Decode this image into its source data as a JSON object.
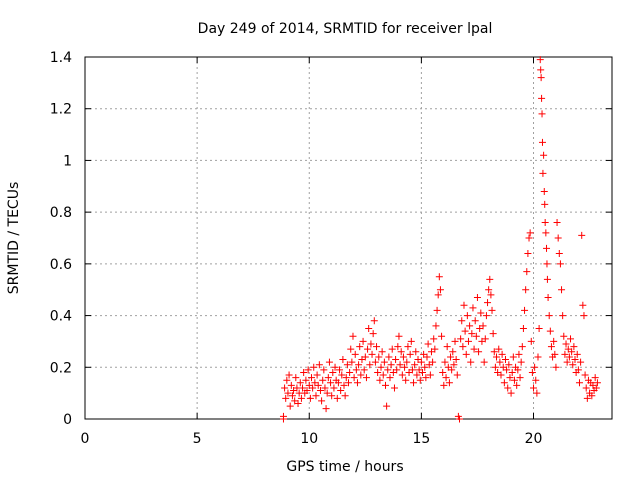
{
  "chart_data": {
    "type": "scatter",
    "title": "Day 249 of 2014, SRMTID for receiver lpal",
    "xlabel": "GPS time / hours",
    "ylabel": "SRMTID / TECUs",
    "xlim": [
      0,
      23.5
    ],
    "ylim": [
      0,
      1.4
    ],
    "x_ticks": [
      0,
      5,
      10,
      15,
      20
    ],
    "x_tick_labels": [
      "0",
      "5",
      "10",
      "15",
      "20"
    ],
    "y_ticks": [
      0,
      0.2,
      0.4,
      0.6,
      0.8,
      1.0,
      1.2,
      1.4
    ],
    "y_tick_labels": [
      "0",
      "0.2",
      "0.4",
      "0.6",
      "0.8",
      "1",
      "1.2",
      "1.4"
    ],
    "grid": true,
    "marker": "plus",
    "color": "#ff0000",
    "series": [
      {
        "name": "SRMTID",
        "points": [
          [
            8.85,
            0.0
          ],
          [
            8.85,
            0.01
          ],
          [
            8.9,
            0.12
          ],
          [
            8.95,
            0.08
          ],
          [
            9.0,
            0.15
          ],
          [
            9.05,
            0.1
          ],
          [
            9.1,
            0.17
          ],
          [
            9.15,
            0.05
          ],
          [
            9.2,
            0.13
          ],
          [
            9.25,
            0.09
          ],
          [
            9.3,
            0.11
          ],
          [
            9.35,
            0.07
          ],
          [
            9.4,
            0.16
          ],
          [
            9.45,
            0.12
          ],
          [
            9.5,
            0.06
          ],
          [
            9.55,
            0.1
          ],
          [
            9.6,
            0.14
          ],
          [
            9.65,
            0.08
          ],
          [
            9.7,
            0.12
          ],
          [
            9.75,
            0.18
          ],
          [
            9.8,
            0.1
          ],
          [
            9.85,
            0.15
          ],
          [
            9.9,
            0.11
          ],
          [
            9.95,
            0.19
          ],
          [
            10.0,
            0.13
          ],
          [
            10.05,
            0.08
          ],
          [
            10.1,
            0.16
          ],
          [
            10.15,
            0.12
          ],
          [
            10.2,
            0.2
          ],
          [
            10.25,
            0.14
          ],
          [
            10.3,
            0.09
          ],
          [
            10.35,
            0.17
          ],
          [
            10.4,
            0.13
          ],
          [
            10.45,
            0.21
          ],
          [
            10.5,
            0.11
          ],
          [
            10.55,
            0.07
          ],
          [
            10.6,
            0.15
          ],
          [
            10.65,
            0.19
          ],
          [
            10.7,
            0.12
          ],
          [
            10.75,
            0.04
          ],
          [
            10.8,
            0.1
          ],
          [
            10.85,
            0.16
          ],
          [
            10.9,
            0.22
          ],
          [
            10.95,
            0.14
          ],
          [
            11.0,
            0.09
          ],
          [
            11.05,
            0.18
          ],
          [
            11.1,
            0.12
          ],
          [
            11.15,
            0.2
          ],
          [
            11.2,
            0.15
          ],
          [
            11.25,
            0.08
          ],
          [
            11.3,
            0.14
          ],
          [
            11.35,
            0.19
          ],
          [
            11.4,
            0.11
          ],
          [
            11.45,
            0.17
          ],
          [
            11.5,
            0.23
          ],
          [
            11.55,
            0.13
          ],
          [
            11.6,
            0.09
          ],
          [
            11.65,
            0.16
          ],
          [
            11.7,
            0.21
          ],
          [
            11.75,
            0.14
          ],
          [
            11.8,
            0.18
          ],
          [
            11.85,
            0.27
          ],
          [
            11.9,
            0.22
          ],
          [
            11.95,
            0.32
          ],
          [
            12.0,
            0.16
          ],
          [
            12.05,
            0.25
          ],
          [
            12.1,
            0.19
          ],
          [
            12.15,
            0.14
          ],
          [
            12.2,
            0.21
          ],
          [
            12.25,
            0.28
          ],
          [
            12.3,
            0.17
          ],
          [
            12.35,
            0.23
          ],
          [
            12.4,
            0.3
          ],
          [
            12.45,
            0.19
          ],
          [
            12.5,
            0.24
          ],
          [
            12.55,
            0.16
          ],
          [
            12.6,
            0.27
          ],
          [
            12.65,
            0.35
          ],
          [
            12.7,
            0.21
          ],
          [
            12.75,
            0.29
          ],
          [
            12.8,
            0.25
          ],
          [
            12.85,
            0.33
          ],
          [
            12.9,
            0.38
          ],
          [
            12.95,
            0.22
          ],
          [
            13.0,
            0.28
          ],
          [
            13.05,
            0.18
          ],
          [
            13.1,
            0.24
          ],
          [
            13.15,
            0.15
          ],
          [
            13.2,
            0.2
          ],
          [
            13.25,
            0.26
          ],
          [
            13.3,
            0.17
          ],
          [
            13.35,
            0.22
          ],
          [
            13.4,
            0.13
          ],
          [
            13.45,
            0.05
          ],
          [
            13.5,
            0.19
          ],
          [
            13.55,
            0.24
          ],
          [
            13.6,
            0.16
          ],
          [
            13.65,
            0.21
          ],
          [
            13.7,
            0.27
          ],
          [
            13.75,
            0.18
          ],
          [
            13.8,
            0.12
          ],
          [
            13.85,
            0.23
          ],
          [
            13.9,
            0.19
          ],
          [
            13.95,
            0.28
          ],
          [
            14.0,
            0.32
          ],
          [
            14.05,
            0.21
          ],
          [
            14.1,
            0.26
          ],
          [
            14.15,
            0.17
          ],
          [
            14.2,
            0.24
          ],
          [
            14.25,
            0.2
          ],
          [
            14.3,
            0.15
          ],
          [
            14.35,
            0.22
          ],
          [
            14.4,
            0.28
          ],
          [
            14.45,
            0.18
          ],
          [
            14.5,
            0.25
          ],
          [
            14.55,
            0.3
          ],
          [
            14.6,
            0.19
          ],
          [
            14.65,
            0.14
          ],
          [
            14.7,
            0.21
          ],
          [
            14.75,
            0.26
          ],
          [
            14.8,
            0.17
          ],
          [
            14.85,
            0.23
          ],
          [
            14.9,
            0.19
          ],
          [
            14.95,
            0.15
          ],
          [
            15.0,
            0.22
          ],
          [
            15.05,
            0.18
          ],
          [
            15.1,
            0.25
          ],
          [
            15.15,
            0.2
          ],
          [
            15.2,
            0.16
          ],
          [
            15.25,
            0.24
          ],
          [
            15.3,
            0.29
          ],
          [
            15.35,
            0.21
          ],
          [
            15.4,
            0.17
          ],
          [
            15.45,
            0.26
          ],
          [
            15.5,
            0.22
          ],
          [
            15.55,
            0.31
          ],
          [
            15.6,
            0.27
          ],
          [
            15.65,
            0.36
          ],
          [
            15.7,
            0.42
          ],
          [
            15.75,
            0.48
          ],
          [
            15.8,
            0.55
          ],
          [
            15.85,
            0.5
          ],
          [
            15.9,
            0.32
          ],
          [
            15.95,
            0.18
          ],
          [
            16.0,
            0.13
          ],
          [
            16.05,
            0.22
          ],
          [
            16.1,
            0.16
          ],
          [
            16.15,
            0.28
          ],
          [
            16.2,
            0.2
          ],
          [
            16.25,
            0.14
          ],
          [
            16.3,
            0.24
          ],
          [
            16.35,
            0.19
          ],
          [
            16.4,
            0.26
          ],
          [
            16.45,
            0.21
          ],
          [
            16.5,
            0.3
          ],
          [
            16.55,
            0.23
          ],
          [
            16.6,
            0.17
          ],
          [
            16.65,
            0.01
          ],
          [
            16.7,
            0.0
          ],
          [
            16.75,
            0.31
          ],
          [
            16.8,
            0.38
          ],
          [
            16.85,
            0.28
          ],
          [
            16.9,
            0.44
          ],
          [
            16.95,
            0.34
          ],
          [
            17.0,
            0.25
          ],
          [
            17.05,
            0.4
          ],
          [
            17.1,
            0.3
          ],
          [
            17.15,
            0.36
          ],
          [
            17.2,
            0.22
          ],
          [
            17.25,
            0.33
          ],
          [
            17.3,
            0.43
          ],
          [
            17.35,
            0.27
          ],
          [
            17.4,
            0.38
          ],
          [
            17.45,
            0.32
          ],
          [
            17.5,
            0.47
          ],
          [
            17.55,
            0.26
          ],
          [
            17.6,
            0.35
          ],
          [
            17.65,
            0.41
          ],
          [
            17.7,
            0.3
          ],
          [
            17.75,
            0.36
          ],
          [
            17.8,
            0.22
          ],
          [
            17.85,
            0.31
          ],
          [
            17.9,
            0.4
          ],
          [
            17.95,
            0.45
          ],
          [
            18.0,
            0.5
          ],
          [
            18.05,
            0.54
          ],
          [
            18.1,
            0.48
          ],
          [
            18.15,
            0.42
          ],
          [
            18.2,
            0.33
          ],
          [
            18.25,
            0.26
          ],
          [
            18.3,
            0.2
          ],
          [
            18.35,
            0.24
          ],
          [
            18.4,
            0.18
          ],
          [
            18.45,
            0.27
          ],
          [
            18.5,
            0.22
          ],
          [
            18.55,
            0.17
          ],
          [
            18.6,
            0.25
          ],
          [
            18.65,
            0.2
          ],
          [
            18.7,
            0.14
          ],
          [
            18.75,
            0.23
          ],
          [
            18.8,
            0.19
          ],
          [
            18.85,
            0.12
          ],
          [
            18.9,
            0.21
          ],
          [
            18.95,
            0.16
          ],
          [
            19.0,
            0.1
          ],
          [
            19.05,
            0.18
          ],
          [
            19.1,
            0.24
          ],
          [
            19.15,
            0.15
          ],
          [
            19.2,
            0.2
          ],
          [
            19.25,
            0.13
          ],
          [
            19.3,
            0.19
          ],
          [
            19.35,
            0.25
          ],
          [
            19.4,
            0.16
          ],
          [
            19.45,
            0.22
          ],
          [
            19.5,
            0.28
          ],
          [
            19.55,
            0.35
          ],
          [
            19.6,
            0.42
          ],
          [
            19.65,
            0.5
          ],
          [
            19.7,
            0.57
          ],
          [
            19.75,
            0.64
          ],
          [
            19.8,
            0.7
          ],
          [
            19.85,
            0.72
          ],
          [
            19.9,
            0.3
          ],
          [
            19.95,
            0.18
          ],
          [
            20.0,
            0.12
          ],
          [
            20.05,
            0.2
          ],
          [
            20.1,
            0.15
          ],
          [
            20.15,
            0.1
          ],
          [
            20.2,
            0.24
          ],
          [
            20.25,
            0.35
          ],
          [
            20.3,
            1.39
          ],
          [
            20.32,
            1.35
          ],
          [
            20.34,
            1.32
          ],
          [
            20.36,
            1.24
          ],
          [
            20.38,
            1.18
          ],
          [
            20.4,
            1.07
          ],
          [
            20.42,
            0.95
          ],
          [
            20.45,
            1.02
          ],
          [
            20.48,
            0.88
          ],
          [
            20.5,
            0.83
          ],
          [
            20.52,
            0.76
          ],
          [
            20.55,
            0.72
          ],
          [
            20.58,
            0.66
          ],
          [
            20.6,
            0.6
          ],
          [
            20.62,
            0.54
          ],
          [
            20.65,
            0.47
          ],
          [
            20.7,
            0.4
          ],
          [
            20.75,
            0.34
          ],
          [
            20.8,
            0.28
          ],
          [
            20.85,
            0.24
          ],
          [
            20.9,
            0.3
          ],
          [
            20.95,
            0.25
          ],
          [
            21.0,
            0.2
          ],
          [
            21.05,
            0.76
          ],
          [
            21.1,
            0.7
          ],
          [
            21.15,
            0.64
          ],
          [
            21.2,
            0.6
          ],
          [
            21.25,
            0.5
          ],
          [
            21.3,
            0.4
          ],
          [
            21.35,
            0.32
          ],
          [
            21.4,
            0.25
          ],
          [
            21.45,
            0.29
          ],
          [
            21.5,
            0.22
          ],
          [
            21.55,
            0.27
          ],
          [
            21.6,
            0.24
          ],
          [
            21.65,
            0.31
          ],
          [
            21.7,
            0.26
          ],
          [
            21.75,
            0.21
          ],
          [
            21.8,
            0.28
          ],
          [
            21.85,
            0.23
          ],
          [
            21.9,
            0.18
          ],
          [
            21.95,
            0.25
          ],
          [
            22.0,
            0.19
          ],
          [
            22.05,
            0.14
          ],
          [
            22.1,
            0.22
          ],
          [
            22.15,
            0.71
          ],
          [
            22.2,
            0.44
          ],
          [
            22.25,
            0.4
          ],
          [
            22.3,
            0.17
          ],
          [
            22.35,
            0.12
          ],
          [
            22.4,
            0.08
          ],
          [
            22.45,
            0.15
          ],
          [
            22.5,
            0.1
          ],
          [
            22.55,
            0.14
          ],
          [
            22.6,
            0.09
          ],
          [
            22.65,
            0.13
          ],
          [
            22.7,
            0.11
          ],
          [
            22.75,
            0.16
          ],
          [
            22.8,
            0.12
          ],
          [
            22.85,
            0.14
          ]
        ]
      }
    ]
  }
}
